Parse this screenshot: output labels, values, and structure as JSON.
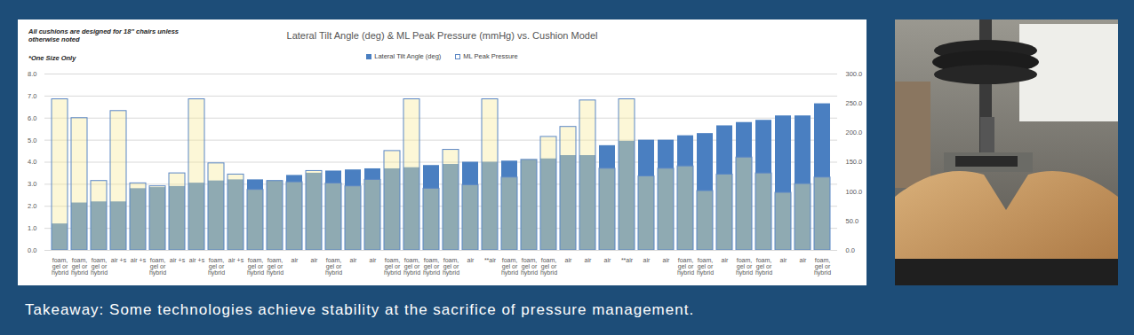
{
  "chart_data": {
    "type": "bar",
    "title": "Lateral Tilt Angle (deg) & ML Peak Pressure (mmHg) vs. Cushion Model",
    "annotations": [
      "All cushions are designed for  18\" chairs unless otherwise noted",
      "*One Size Only"
    ],
    "caption": "Takeaway: Some technologies achieve stability at the sacrifice of pressure management.",
    "categories": [
      "foam, gel or hybrid",
      "foam, gel or hybrid",
      "foam, gel or hybrid",
      "air +s",
      "air +s",
      "foam, gel or hybrid",
      "air +s",
      "air +s",
      "foam, gel or hybrid",
      "air +s",
      "foam, gel or hybrid",
      "foam, gel or hybrid",
      "air",
      "air",
      "foam, gel or hybrid",
      "air",
      "air",
      "foam, gel or hybrid",
      "foam, gel or hybrid",
      "foam, gel or hybrid",
      "foam, gel or hybrid",
      "air",
      "**air",
      "foam, gel or hybrid",
      "foam, gel or hybrid",
      "foam, gel or hybrid",
      "air",
      "air",
      "air",
      "**air",
      "air",
      "air",
      "foam, gel or hybrid",
      "foam, gel or hybrid",
      "air",
      "foam, gel or hybrid",
      "foam, gel or hybrid",
      "air",
      "air",
      "foam, gel or hybrid"
    ],
    "series": [
      {
        "name": "Lateral Tilt Angle (deg)",
        "color": "#4a7fc1",
        "values": [
          1.2,
          2.15,
          2.2,
          2.2,
          2.8,
          2.85,
          2.9,
          3.05,
          3.15,
          3.2,
          3.2,
          3.15,
          3.4,
          3.5,
          3.6,
          3.65,
          3.7,
          3.7,
          3.75,
          3.85,
          3.9,
          4.0,
          4.0,
          4.05,
          4.1,
          4.15,
          4.3,
          4.3,
          4.75,
          4.95,
          5.0,
          5.0,
          5.2,
          5.3,
          5.65,
          5.8,
          5.9,
          6.1,
          6.1,
          6.65
        ]
      },
      {
        "name": "ML Peak Pressure",
        "color": "#f8eb9c",
        "axis": "y2",
        "values": [
          257,
          225,
          118,
          237,
          114,
          109,
          131,
          257,
          148,
          129,
          103,
          118,
          116,
          135,
          114,
          109,
          120,
          169,
          257,
          105,
          171,
          111,
          257,
          124,
          154,
          193,
          210,
          255,
          139,
          257,
          126,
          139,
          143,
          101,
          129,
          158,
          131,
          98,
          113,
          124
        ]
      }
    ],
    "ylim": [
      0,
      8
    ],
    "yticks": [
      {
        "value": 0,
        "label": "0.0"
      },
      {
        "value": 1,
        "label": "1.0"
      },
      {
        "value": 2,
        "label": "2.0"
      },
      {
        "value": 3,
        "label": "3.0"
      },
      {
        "value": 4,
        "label": "4.0"
      },
      {
        "value": 5,
        "label": "5.0"
      },
      {
        "value": 6,
        "label": "6.0"
      },
      {
        "value": 7,
        "label": "7.0"
      },
      {
        "value": 8,
        "label": "8.0"
      }
    ],
    "y2lim": [
      0,
      300
    ],
    "y2ticks": [
      {
        "value": 0,
        "label": "0.0"
      },
      {
        "value": 50,
        "label": "50.0"
      },
      {
        "value": 100,
        "label": "100.0"
      },
      {
        "value": 150,
        "label": "150.0"
      },
      {
        "value": 200,
        "label": "200.0"
      },
      {
        "value": 250,
        "label": "250.0"
      },
      {
        "value": 300,
        "label": "300.0"
      }
    ],
    "grid": true,
    "legend": "top"
  }
}
